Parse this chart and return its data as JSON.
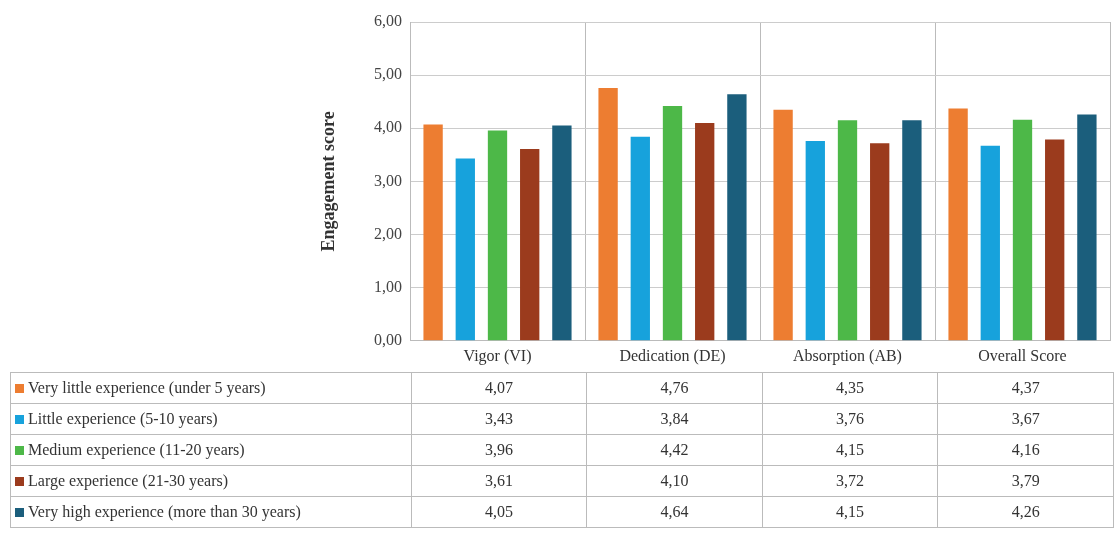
{
  "chart_data": {
    "type": "bar",
    "ylabel": "Engagement score",
    "categories": [
      "Vigor (VI)",
      "Dedication (DE)",
      "Absorption (AB)",
      "Overall Score"
    ],
    "series": [
      {
        "name": "Very little experience (under 5 years)",
        "color": "#ed7d31",
        "values": [
          4.07,
          4.76,
          4.35,
          4.37
        ],
        "value_labels": [
          "4,07",
          "4,76",
          "4,35",
          "4,37"
        ]
      },
      {
        "name": "Little experience (5-10 years)",
        "color": "#17a2dc",
        "values": [
          3.43,
          3.84,
          3.76,
          3.67
        ],
        "value_labels": [
          "3,43",
          "3,84",
          "3,76",
          "3,67"
        ]
      },
      {
        "name": "Medium experience (11-20 years)",
        "color": "#4db848",
        "values": [
          3.96,
          4.42,
          4.15,
          4.16
        ],
        "value_labels": [
          "3,96",
          "4,42",
          "4,15",
          "4,16"
        ]
      },
      {
        "name": "Large experience (21-30 years)",
        "color": "#9b3b1d",
        "values": [
          3.61,
          4.1,
          3.72,
          3.79
        ],
        "value_labels": [
          "3,61",
          "4,10",
          "3,72",
          "3,79"
        ]
      },
      {
        "name": "Very high experience (more than 30 years)",
        "color": "#1b5e7c",
        "values": [
          4.05,
          4.64,
          4.15,
          4.26
        ],
        "value_labels": [
          "4,05",
          "4,64",
          "4,15",
          "4,26"
        ]
      }
    ],
    "ylim": [
      0,
      6
    ],
    "yticks": [
      {
        "value": 0,
        "label": "0,00"
      },
      {
        "value": 1,
        "label": "1,00"
      },
      {
        "value": 2,
        "label": "2,00"
      },
      {
        "value": 3,
        "label": "3,00"
      },
      {
        "value": 4,
        "label": "4,00"
      },
      {
        "value": 5,
        "label": "5,00"
      },
      {
        "value": 6,
        "label": "6,00"
      }
    ],
    "grid": true,
    "legend": "bottom"
  }
}
